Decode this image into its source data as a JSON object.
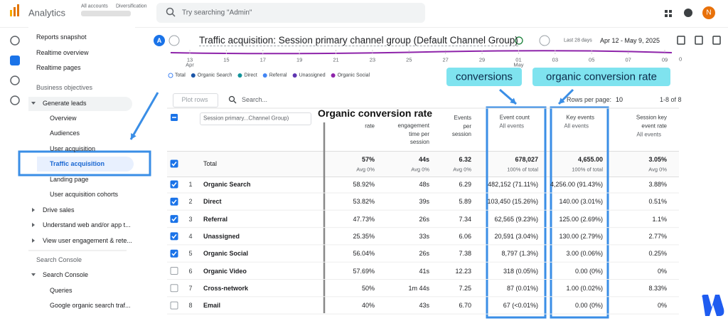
{
  "header": {
    "app": "Analytics",
    "breadcrumb": [
      "All accounts",
      "Diversification"
    ],
    "search_placeholder": "Try searching \"Admin\"",
    "avatar": "N"
  },
  "nav": {
    "top": [
      "Reports snapshot",
      "Realtime overview",
      "Realtime pages"
    ],
    "business": {
      "title": "Business objectives",
      "groups": [
        {
          "label": "Generate leads",
          "items": [
            "Overview",
            "Audiences",
            "User acquisition",
            "Traffic acquisition",
            "Landing page",
            "User acquisition cohorts"
          ]
        },
        {
          "label": "Drive sales"
        },
        {
          "label": "Understand web and/or app t..."
        },
        {
          "label": "View user engagement & rete..."
        }
      ]
    },
    "search_console": {
      "title": "Search Console",
      "groups": [
        {
          "label": "Search Console",
          "items": [
            "Queries",
            "Google organic search traf..."
          ]
        }
      ]
    }
  },
  "report": {
    "badge": "A",
    "title": "Traffic acquisition: Session primary channel group (Default Channel Group)",
    "date_range_label": "Last 28 days",
    "date_range": "Apr 12 - May 9, 2025"
  },
  "timeline": {
    "dates": [
      {
        "day": "13",
        "month": "Apr"
      },
      {
        "day": "15"
      },
      {
        "day": "17"
      },
      {
        "day": "19"
      },
      {
        "day": "21"
      },
      {
        "day": "23"
      },
      {
        "day": "25"
      },
      {
        "day": "27"
      },
      {
        "day": "29"
      },
      {
        "day": "01",
        "month": "May"
      },
      {
        "day": "03"
      },
      {
        "day": "05"
      },
      {
        "day": "07"
      },
      {
        "day": "09"
      }
    ],
    "yticks": [
      "0"
    ],
    "legend": [
      {
        "name": "Total",
        "color": "#9aa0a6"
      },
      {
        "name": "Organic Search",
        "color": "#1a55a8"
      },
      {
        "name": "Direct",
        "color": "#12939a"
      },
      {
        "name": "Referral",
        "color": "#4285f4"
      },
      {
        "name": "Unassigned",
        "color": "#5e35b1"
      },
      {
        "name": "Organic Social",
        "color": "#8e24aa"
      }
    ]
  },
  "annotations": {
    "conversions": "conversions",
    "organic_conversion_rate": "organic conversion rate",
    "column_note": "Organic conversion rate"
  },
  "table": {
    "controls": {
      "plot_rows": "Plot rows",
      "search": "Search...",
      "rows_per_page_label": "Rows per page:",
      "rows_per_page": "10",
      "pagination": "1-8 of 8"
    },
    "columns": [
      {
        "label": "Session primary...Channel Group)"
      },
      {
        "label": "rate"
      },
      {
        "label": "engagement time per session"
      },
      {
        "label": "Events per session"
      },
      {
        "label": "Event count",
        "filter": "All events"
      },
      {
        "label": "Key events",
        "filter": "All events"
      },
      {
        "label": "Session key event rate",
        "filter": "All events"
      }
    ],
    "total": {
      "label": "Total",
      "cells": [
        [
          "57%",
          "Avg 0%"
        ],
        [
          "44s",
          "Avg 0%"
        ],
        [
          "6.32",
          "Avg 0%"
        ],
        [
          "678,027",
          "100% of total"
        ],
        [
          "4,655.00",
          "100% of total"
        ],
        [
          "3.05%",
          "Avg 0%"
        ]
      ]
    },
    "rows": [
      {
        "rank": 1,
        "name": "Organic Search",
        "checked": true,
        "cells": [
          "58.92%",
          "48s",
          "6.29",
          "482,152 (71.11%)",
          "4,256.00 (91.43%)",
          "3.88%"
        ]
      },
      {
        "rank": 2,
        "name": "Direct",
        "checked": true,
        "cells": [
          "53.82%",
          "39s",
          "5.89",
          "103,450 (15.26%)",
          "140.00 (3.01%)",
          "0.51%"
        ]
      },
      {
        "rank": 3,
        "name": "Referral",
        "checked": true,
        "cells": [
          "47.73%",
          "26s",
          "7.34",
          "62,565 (9.23%)",
          "125.00 (2.69%)",
          "1.1%"
        ]
      },
      {
        "rank": 4,
        "name": "Unassigned",
        "checked": true,
        "cells": [
          "25.35%",
          "33s",
          "6.06",
          "20,591 (3.04%)",
          "130.00 (2.79%)",
          "2.77%"
        ]
      },
      {
        "rank": 5,
        "name": "Organic Social",
        "checked": true,
        "cells": [
          "56.04%",
          "26s",
          "7.38",
          "8,797 (1.3%)",
          "3.00 (0.06%)",
          "0.25%"
        ]
      },
      {
        "rank": 6,
        "name": "Organic Video",
        "checked": false,
        "cells": [
          "57.69%",
          "41s",
          "12.23",
          "318 (0.05%)",
          "0.00 (0%)",
          "0%"
        ]
      },
      {
        "rank": 7,
        "name": "Cross-network",
        "checked": false,
        "cells": [
          "50%",
          "1m 44s",
          "7.25",
          "87 (0.01%)",
          "1.00 (0.02%)",
          "8.33%"
        ]
      },
      {
        "rank": 8,
        "name": "Email",
        "checked": false,
        "cells": [
          "40%",
          "43s",
          "6.70",
          "67 (<0.01%)",
          "0.00 (0%)",
          "0%"
        ]
      }
    ]
  }
}
